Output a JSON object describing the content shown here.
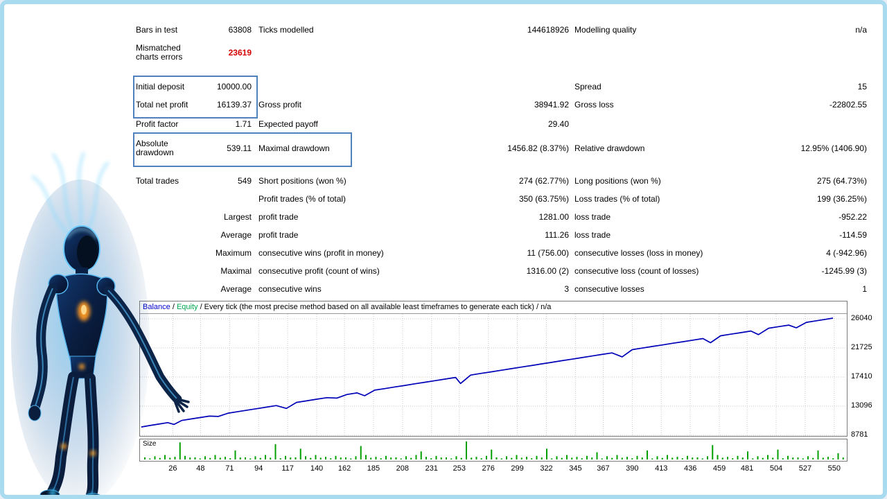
{
  "report": {
    "rows": [
      {
        "l1": "Bars in test",
        "v1": "63808",
        "l2": "Ticks modelled",
        "v2": "144618926",
        "l3": "Modelling quality",
        "v3": "n/a"
      },
      {
        "l1": "Mismatched charts errors",
        "v1": "23619",
        "l2": "",
        "v2": "",
        "l3": "",
        "v3": ""
      },
      {
        "l1": "Initial deposit",
        "v1": "10000.00",
        "l2": "",
        "v2": "",
        "l3": "Spread",
        "v3": "15"
      },
      {
        "l1": "Total net profit",
        "v1": "16139.37",
        "l2": "Gross profit",
        "v2": "38941.92",
        "l3": "Gross loss",
        "v3": "-22802.55"
      },
      {
        "l1": "Profit factor",
        "v1": "1.71",
        "l2": "Expected payoff",
        "v2": "29.40",
        "l3": "",
        "v3": ""
      },
      {
        "l1": "Absolute drawdown",
        "v1": "539.11",
        "l2": "Maximal drawdown",
        "v2": "1456.82 (8.37%)",
        "l3": "Relative drawdown",
        "v3": "12.95% (1406.90)"
      },
      {
        "l1": "Total trades",
        "v1": "549",
        "l2": "Short positions (won %)",
        "v2": "274 (62.77%)",
        "l3": "Long positions (won %)",
        "v3": "275 (64.73%)"
      },
      {
        "l1": "",
        "v1": "",
        "l2": "Profit trades (% of total)",
        "v2": "350 (63.75%)",
        "l3": "Loss trades (% of total)",
        "v3": "199 (36.25%)"
      },
      {
        "l1": "",
        "v1": "Largest",
        "l2": "profit trade",
        "v2": "1281.00",
        "l3": "loss trade",
        "v3": "-952.22"
      },
      {
        "l1": "",
        "v1": "Average",
        "l2": "profit trade",
        "v2": "111.26",
        "l3": "loss trade",
        "v3": "-114.59"
      },
      {
        "l1": "",
        "v1": "Maximum",
        "l2": "consecutive wins (profit in money)",
        "v2": "11 (756.00)",
        "l3": "consecutive losses (loss in money)",
        "v3": "4 (-942.96)"
      },
      {
        "l1": "",
        "v1": "Maximal",
        "l2": "consecutive profit (count of wins)",
        "v2": "1316.00 (2)",
        "l3": "consecutive loss (count of losses)",
        "v3": "-1245.99 (3)"
      },
      {
        "l1": "",
        "v1": "Average",
        "l2": "consecutive wins",
        "v2": "3",
        "l3": "consecutive losses",
        "v3": "1"
      }
    ]
  },
  "chart": {
    "legend_balance": "Balance",
    "sep1": " / ",
    "legend_equity": "Equity",
    "header_rest": " / Every tick (the most precise method based on all available least timeframes to generate each tick) / n/a",
    "size_label": "Size",
    "balance_color": "#0000b8",
    "equity_color": "#00a650",
    "grid_color": "#c8c8c8",
    "highlight_color": "#4f81bd"
  },
  "chart_data": [
    {
      "type": "line",
      "name": "balance-curve",
      "series_name": "Balance",
      "x_max": 560,
      "y_ticks": [
        26040,
        21725,
        17410,
        13096,
        8781
      ],
      "x_ticks": [
        26,
        48,
        71,
        94,
        117,
        140,
        162,
        185,
        208,
        231,
        253,
        276,
        299,
        322,
        345,
        367,
        390,
        413,
        436,
        459,
        481,
        504,
        527,
        550
      ],
      "points": [
        [
          1,
          10000
        ],
        [
          8,
          10230
        ],
        [
          15,
          10440
        ],
        [
          22,
          10650
        ],
        [
          27,
          10380
        ],
        [
          33,
          10970
        ],
        [
          40,
          11180
        ],
        [
          48,
          11410
        ],
        [
          55,
          11620
        ],
        [
          62,
          11560
        ],
        [
          70,
          12060
        ],
        [
          78,
          12290
        ],
        [
          85,
          12500
        ],
        [
          92,
          12710
        ],
        [
          100,
          12940
        ],
        [
          108,
          13180
        ],
        [
          116,
          12760
        ],
        [
          124,
          13650
        ],
        [
          132,
          13880
        ],
        [
          140,
          14120
        ],
        [
          148,
          14350
        ],
        [
          156,
          14290
        ],
        [
          164,
          14820
        ],
        [
          172,
          15060
        ],
        [
          178,
          14640
        ],
        [
          186,
          15470
        ],
        [
          194,
          15700
        ],
        [
          202,
          15940
        ],
        [
          210,
          16170
        ],
        [
          218,
          16410
        ],
        [
          226,
          16640
        ],
        [
          234,
          16880
        ],
        [
          242,
          17110
        ],
        [
          250,
          17350
        ],
        [
          254,
          16450
        ],
        [
          262,
          17700
        ],
        [
          270,
          17940
        ],
        [
          278,
          18170
        ],
        [
          286,
          18410
        ],
        [
          294,
          18640
        ],
        [
          302,
          18880
        ],
        [
          310,
          19110
        ],
        [
          318,
          19350
        ],
        [
          326,
          19580
        ],
        [
          334,
          19820
        ],
        [
          342,
          20050
        ],
        [
          350,
          20290
        ],
        [
          358,
          20520
        ],
        [
          366,
          20760
        ],
        [
          374,
          20990
        ],
        [
          382,
          20400
        ],
        [
          390,
          21470
        ],
        [
          398,
          21700
        ],
        [
          406,
          21940
        ],
        [
          414,
          22170
        ],
        [
          422,
          22410
        ],
        [
          430,
          22640
        ],
        [
          438,
          22880
        ],
        [
          446,
          23110
        ],
        [
          452,
          22500
        ],
        [
          460,
          23520
        ],
        [
          468,
          23760
        ],
        [
          476,
          23990
        ],
        [
          484,
          24230
        ],
        [
          490,
          23700
        ],
        [
          498,
          24640
        ],
        [
          506,
          24880
        ],
        [
          514,
          25110
        ],
        [
          520,
          24700
        ],
        [
          528,
          25520
        ],
        [
          536,
          25750
        ],
        [
          543,
          25960
        ],
        [
          549,
          26141
        ]
      ]
    },
    {
      "type": "bar",
      "name": "trade-size",
      "label": "Size",
      "color": "#00a000",
      "values": [
        0.12,
        0.06,
        0.18,
        0.09,
        0.25,
        0.1,
        0.15,
        0.95,
        0.2,
        0.11,
        0.12,
        0.06,
        0.18,
        0.09,
        0.25,
        0.1,
        0.15,
        0.07,
        0.5,
        0.11,
        0.12,
        0.06,
        0.18,
        0.09,
        0.25,
        0.1,
        0.85,
        0.07,
        0.2,
        0.11,
        0.12,
        0.6,
        0.18,
        0.09,
        0.25,
        0.1,
        0.15,
        0.07,
        0.2,
        0.11,
        0.12,
        0.06,
        0.18,
        0.75,
        0.25,
        0.1,
        0.15,
        0.07,
        0.2,
        0.11,
        0.12,
        0.06,
        0.18,
        0.09,
        0.25,
        0.45,
        0.15,
        0.07,
        0.2,
        0.11,
        0.12,
        0.06,
        0.18,
        0.09,
        1.0,
        0.1,
        0.15,
        0.07,
        0.2,
        0.55,
        0.12,
        0.06,
        0.18,
        0.09,
        0.25,
        0.1,
        0.15,
        0.07,
        0.2,
        0.11,
        0.6,
        0.06,
        0.18,
        0.09,
        0.25,
        0.1,
        0.15,
        0.07,
        0.2,
        0.11,
        0.4,
        0.06,
        0.18,
        0.09,
        0.25,
        0.1,
        0.15,
        0.07,
        0.2,
        0.11,
        0.5,
        0.06,
        0.18,
        0.09,
        0.25,
        0.1,
        0.15,
        0.07,
        0.2,
        0.11,
        0.12,
        0.06,
        0.18,
        0.8,
        0.25,
        0.1,
        0.15,
        0.07,
        0.2,
        0.11,
        0.45,
        0.06,
        0.18,
        0.09,
        0.25,
        0.1,
        0.55,
        0.07,
        0.2,
        0.11,
        0.12,
        0.06,
        0.18,
        0.09,
        0.5,
        0.1,
        0.15,
        0.07,
        0.35,
        0.11
      ]
    }
  ]
}
